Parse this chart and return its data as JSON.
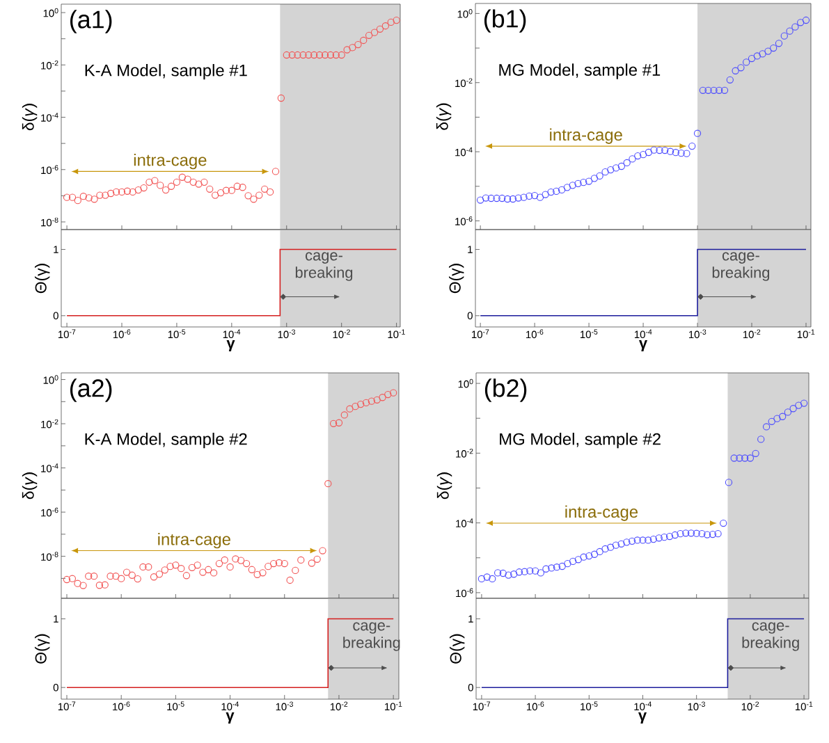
{
  "chart_data": [
    {
      "type": "scatter",
      "marker": "circle",
      "log": "xy",
      "color": "#f25555",
      "tick_labels": "y",
      "ylabel": "δ(*γ*)",
      "x": [
        1e-07,
        1.26e-07,
        1.58e-07,
        2e-07,
        2.51e-07,
        3.16e-07,
        3.98e-07,
        5.01e-07,
        6.31e-07,
        7.94e-07,
        1e-06,
        1.26e-06,
        1.58e-06,
        2e-06,
        2.51e-06,
        3.16e-06,
        3.98e-06,
        5.01e-06,
        6.31e-06,
        7.94e-06,
        1e-05,
        1.26e-05,
        1.58e-05,
        2e-05,
        2.51e-05,
        3.16e-05,
        3.98e-05,
        5.01e-05,
        6.31e-05,
        7.94e-05,
        0.0001,
        0.000126,
        0.000158,
        0.0002,
        0.000251,
        0.000316,
        0.000398,
        0.000501,
        0.000631,
        0.000794,
        0.001,
        0.00126,
        0.00158,
        0.002,
        0.00251,
        0.00316,
        0.00398,
        0.00501,
        0.00631,
        0.00794,
        0.01,
        0.0126,
        0.0158,
        0.02,
        0.0251,
        0.0316,
        0.0398,
        0.0501,
        0.0631,
        0.0794,
        0.1
      ],
      "values": [
        8.7e-08,
        8.7e-08,
        6.6e-08,
        9.5e-08,
        8.3e-08,
        7.4e-08,
        1.05e-07,
        1.05e-07,
        1.23e-07,
        1.4e-07,
        1.4e-07,
        1.5e-07,
        1.4e-07,
        1.66e-07,
        2e-07,
        3.3e-07,
        3.8e-07,
        2.5e-07,
        1.66e-07,
        2.3e-07,
        3.3e-07,
        5.1e-07,
        4.3e-07,
        3.3e-07,
        2.8e-07,
        3.3e-07,
        1.8e-07,
        1.05e-07,
        1.3e-07,
        1.6e-07,
        1.6e-07,
        2.3e-07,
        2.1e-07,
        1e-07,
        7.4e-08,
        1.05e-07,
        1.8e-07,
        1.4e-07,
        8.5e-07,
        0.00054,
        0.024,
        0.024,
        0.024,
        0.024,
        0.024,
        0.024,
        0.024,
        0.024,
        0.024,
        0.024,
        0.024,
        0.038,
        0.046,
        0.06,
        0.087,
        0.135,
        0.174,
        0.234,
        0.31,
        0.43,
        0.51
      ],
      "xlim": [
        7.9e-08,
        0.117
      ],
      "ylim": [
        5.1e-09,
        2.1
      ],
      "xticks": [
        {
          "value": 1e-07,
          "label": null
        },
        {
          "value": 1e-06,
          "label": null
        },
        {
          "value": 1e-05,
          "label": null
        },
        {
          "value": 0.0001,
          "label": null
        },
        {
          "value": 0.001,
          "label": null
        },
        {
          "value": 0.01,
          "label": null
        },
        {
          "value": 0.1,
          "label": null
        }
      ],
      "yticks": [
        {
          "value": 1,
          "label": "10$^{0}$"
        },
        {
          "value": 0.1,
          "label": null
        },
        {
          "value": 0.01,
          "label": "10$^{-2}$"
        },
        {
          "value": 0.001,
          "label": null
        },
        {
          "value": 0.0001,
          "label": "10$^{-4}$"
        },
        {
          "value": 1e-05,
          "label": null
        },
        {
          "value": 1e-06,
          "label": "10$^{-6}$"
        },
        {
          "value": 1e-07,
          "label": null
        },
        {
          "value": 1e-08,
          "label": "10$^{-8}$"
        }
      ],
      "bands": [
        {
          "axis": "x",
          "from": 0.00076,
          "to": 0.117,
          "color": "#d4d4d4"
        }
      ],
      "annotations": [
        "(a1)",
        "K-A Model, sample #1",
        "intra-cage"
      ]
    },
    {
      "type": "scatter",
      "marker": "circle",
      "log": "xy",
      "color": "#4d4dff",
      "tick_labels": "y",
      "ylabel": "δ(*γ*)",
      "x": [
        1e-07,
        1.26e-07,
        1.58e-07,
        2e-07,
        2.51e-07,
        3.16e-07,
        3.98e-07,
        5.01e-07,
        6.31e-07,
        7.94e-07,
        1e-06,
        1.26e-06,
        1.58e-06,
        2e-06,
        2.51e-06,
        3.16e-06,
        3.98e-06,
        5.01e-06,
        6.31e-06,
        7.94e-06,
        1e-05,
        1.26e-05,
        1.58e-05,
        2e-05,
        2.51e-05,
        3.16e-05,
        3.98e-05,
        5.01e-05,
        6.31e-05,
        7.94e-05,
        0.0001,
        0.000126,
        0.000158,
        0.0002,
        0.000251,
        0.000316,
        0.000398,
        0.000501,
        0.000631,
        0.000794,
        0.001,
        0.00126,
        0.00158,
        0.002,
        0.00251,
        0.00316,
        0.00398,
        0.00501,
        0.00631,
        0.00794,
        0.01,
        0.0126,
        0.0158,
        0.02,
        0.0251,
        0.0316,
        0.0398,
        0.0501,
        0.0631,
        0.0794,
        0.1
      ],
      "values": [
        4e-06,
        4.6e-06,
        4.5e-06,
        4.5e-06,
        4.5e-06,
        4.3e-06,
        4.3e-06,
        4.6e-06,
        4.8e-06,
        5.2e-06,
        5.4e-06,
        4.8e-06,
        5.8e-06,
        6.8e-06,
        7.2e-06,
        7.9e-06,
        9.3e-06,
        1.07e-05,
        1.2e-05,
        1.3e-05,
        1.4e-05,
        1.7e-05,
        2e-05,
        2.6e-05,
        3e-05,
        3.4e-05,
        3.8e-05,
        4.8e-05,
        6.2e-05,
        7.6e-05,
        8.3e-05,
        9.6e-05,
        0.000112,
        0.00011,
        0.00011,
        0.000102,
        9.5e-05,
        9.1e-05,
        8.9e-05,
        0.000145,
        0.00034,
        0.006,
        0.006,
        0.006,
        0.006,
        0.006,
        0.012,
        0.022,
        0.027,
        0.039,
        0.05,
        0.059,
        0.068,
        0.081,
        0.1,
        0.137,
        0.224,
        0.31,
        0.41,
        0.55,
        0.64
      ],
      "xlim": [
        8.1e-08,
        0.123
      ],
      "ylim": [
        5.6e-07,
        1.95
      ],
      "xticks": [
        {
          "value": 1e-07,
          "label": null
        },
        {
          "value": 1e-06,
          "label": null
        },
        {
          "value": 1e-05,
          "label": null
        },
        {
          "value": 0.0001,
          "label": null
        },
        {
          "value": 0.001,
          "label": null
        },
        {
          "value": 0.01,
          "label": null
        },
        {
          "value": 0.1,
          "label": null
        }
      ],
      "yticks": [
        {
          "value": 1,
          "label": "10$^{0}$"
        },
        {
          "value": 0.1,
          "label": null
        },
        {
          "value": 0.01,
          "label": "10$^{-2}$"
        },
        {
          "value": 0.001,
          "label": null
        },
        {
          "value": 0.0001,
          "label": "10$^{-4}$"
        },
        {
          "value": 1e-05,
          "label": null
        },
        {
          "value": 1e-06,
          "label": "10$^{-6}$"
        }
      ],
      "bands": [
        {
          "axis": "x",
          "from": 0.001,
          "to": 0.123,
          "color": "#d4d4d4"
        }
      ],
      "annotations": [
        "(b1)",
        "MG Model, sample #1",
        "intra-cage"
      ]
    },
    {
      "type": "step",
      "log": "x",
      "color": "#d41e1e",
      "ylabel": "Θ(γ)",
      "xlabel": "γ",
      "x": [
        1e-07,
        0.00076,
        0.1
      ],
      "values": [
        0,
        1,
        1
      ],
      "xlim": [
        7.9e-08,
        0.117
      ],
      "ylim": [
        -0.17,
        1.3
      ],
      "xticks": [
        {
          "value": 1e-07,
          "label": "10$^{-7}$"
        },
        {
          "value": 1e-06,
          "label": "10$^{-6}$"
        },
        {
          "value": 1e-05,
          "label": "10$^{-5}$"
        },
        {
          "value": 0.0001,
          "label": "10$^{-4}$"
        },
        {
          "value": 0.001,
          "label": "10$^{-3}$"
        },
        {
          "value": 0.01,
          "label": "10$^{-2}$"
        },
        {
          "value": 0.1,
          "label": "10$^{-1}$"
        }
      ],
      "yticks": [
        0,
        1
      ],
      "bands": [
        {
          "axis": "x",
          "from": 0.00076,
          "to": 0.117,
          "color": "#d4d4d4"
        }
      ],
      "annotations": [
        "cage-breaking"
      ]
    },
    {
      "type": "step",
      "log": "x",
      "color": "#1c1c9c",
      "ylabel": "Θ(γ)",
      "xlabel": "γ",
      "x": [
        1e-07,
        0.001,
        0.1
      ],
      "values": [
        0,
        1,
        1
      ],
      "xlim": [
        8.1e-08,
        0.123
      ],
      "ylim": [
        -0.17,
        1.3
      ],
      "xticks": [
        {
          "value": 1e-07,
          "label": "10$^{-7}$"
        },
        {
          "value": 1e-06,
          "label": "10$^{-6}$"
        },
        {
          "value": 1e-05,
          "label": "10$^{-5}$"
        },
        {
          "value": 0.0001,
          "label": "10$^{-4}$"
        },
        {
          "value": 0.001,
          "label": "10$^{-3}$"
        },
        {
          "value": 0.01,
          "label": "10$^{-2}$"
        },
        {
          "value": 0.1,
          "label": "10$^{-1}$"
        }
      ],
      "yticks": [
        0,
        1
      ],
      "bands": [
        {
          "axis": "x",
          "from": 0.001,
          "to": 0.123,
          "color": "#d4d4d4"
        }
      ],
      "annotations": [
        "cage-breaking"
      ]
    },
    {
      "type": "scatter",
      "marker": "circle",
      "log": "xy",
      "color": "#f25555",
      "tick_labels": "y",
      "ylabel": "δ(*γ*)",
      "x": [
        1e-07,
        1.26e-07,
        1.58e-07,
        2e-07,
        2.51e-07,
        3.16e-07,
        3.98e-07,
        5.01e-07,
        6.31e-07,
        7.94e-07,
        1e-06,
        1.26e-06,
        1.58e-06,
        2e-06,
        2.51e-06,
        3.16e-06,
        3.98e-06,
        5.01e-06,
        6.31e-06,
        7.94e-06,
        1e-05,
        1.26e-05,
        1.58e-05,
        2e-05,
        2.51e-05,
        3.16e-05,
        3.98e-05,
        5.01e-05,
        6.31e-05,
        7.94e-05,
        0.0001,
        0.000126,
        0.000158,
        0.0002,
        0.000251,
        0.000316,
        0.000398,
        0.000501,
        0.000631,
        0.000794,
        0.001,
        0.00126,
        0.00158,
        0.002,
        0.00251,
        0.00316,
        0.00398,
        0.00501,
        0.00631,
        0.00794,
        0.01,
        0.0126,
        0.0158,
        0.02,
        0.0251,
        0.0316,
        0.0398,
        0.0501,
        0.0631,
        0.0794,
        0.1
      ],
      "values": [
        8.9e-10,
        9.8e-10,
        5.9e-10,
        4.8e-10,
        1.26e-09,
        1.26e-09,
        4.9e-10,
        5.1e-10,
        1.26e-09,
        1.26e-09,
        9.8e-10,
        1.9e-09,
        1.4e-09,
        9.5e-10,
        3.3e-09,
        3.3e-09,
        1.17e-09,
        1.55e-09,
        2.4e-09,
        3.5e-09,
        4e-09,
        2.8e-09,
        1.35e-09,
        3.1e-09,
        4e-09,
        1.9e-09,
        2.5e-09,
        1.78e-09,
        4.7e-09,
        6.8e-09,
        3.3e-09,
        7.6e-09,
        6.5e-09,
        4.7e-09,
        2.5e-09,
        1.5e-09,
        1.8e-09,
        3.5e-09,
        4.7e-09,
        5.1e-09,
        4.7e-09,
        8.3e-10,
        2.3e-09,
        6.8e-09,
        null,
        4.9e-09,
        7.4e-09,
        1.8e-08,
        1.94e-05,
        0.0102,
        0.011,
        0.025,
        0.047,
        0.061,
        0.076,
        0.089,
        0.105,
        0.12,
        0.155,
        0.21,
        0.25
      ],
      "xlim": [
        7.9e-08,
        0.126
      ],
      "ylim": [
        1.26e-10,
        2.0
      ],
      "xticks": [
        {
          "value": 1e-07,
          "label": null
        },
        {
          "value": 1e-06,
          "label": null
        },
        {
          "value": 1e-05,
          "label": null
        },
        {
          "value": 0.0001,
          "label": null
        },
        {
          "value": 0.001,
          "label": null
        },
        {
          "value": 0.01,
          "label": null
        },
        {
          "value": 0.1,
          "label": null
        }
      ],
      "yticks": [
        {
          "value": 1,
          "label": "10$^{0}$"
        },
        {
          "value": 0.1,
          "label": null
        },
        {
          "value": 0.01,
          "label": "10$^{-2}$"
        },
        {
          "value": 0.001,
          "label": null
        },
        {
          "value": 0.0001,
          "label": "10$^{-4}$"
        },
        {
          "value": 1e-05,
          "label": null
        },
        {
          "value": 1e-06,
          "label": "10$^{-6}$"
        },
        {
          "value": 1e-07,
          "label": null
        },
        {
          "value": 1e-08,
          "label": "10$^{-8}$"
        },
        {
          "value": 1e-09,
          "label": null
        }
      ],
      "bands": [
        {
          "axis": "x",
          "from": 0.0063,
          "to": 0.126,
          "color": "#d4d4d4"
        }
      ],
      "annotations": [
        "(a2)",
        "K-A Model, sample #2",
        "intra-cage"
      ]
    },
    {
      "type": "scatter",
      "marker": "circle",
      "log": "xy",
      "color": "#4d4dff",
      "tick_labels": "y",
      "ylabel": "δ(*γ*)",
      "x": [
        1e-07,
        1.26e-07,
        1.58e-07,
        2e-07,
        2.51e-07,
        3.16e-07,
        3.98e-07,
        5.01e-07,
        6.31e-07,
        7.94e-07,
        1e-06,
        1.26e-06,
        1.58e-06,
        2e-06,
        2.51e-06,
        3.16e-06,
        3.98e-06,
        5.01e-06,
        6.31e-06,
        7.94e-06,
        1e-05,
        1.26e-05,
        1.58e-05,
        2e-05,
        2.51e-05,
        3.16e-05,
        3.98e-05,
        5.01e-05,
        6.31e-05,
        7.94e-05,
        0.0001,
        0.000126,
        0.000158,
        0.0002,
        0.000251,
        0.000316,
        0.000398,
        0.000501,
        0.000631,
        0.000794,
        0.001,
        0.00126,
        0.00158,
        0.002,
        0.00251,
        0.00316,
        0.00398,
        0.00501,
        0.00631,
        0.00794,
        0.01,
        0.0126,
        0.0158,
        0.02,
        0.0251,
        0.0316,
        0.0398,
        0.0501,
        0.0631,
        0.0794,
        0.1
      ],
      "values": [
        2.5e-06,
        2.8e-06,
        2.5e-06,
        3.7e-06,
        3.6e-06,
        3.2e-06,
        3.4e-06,
        3.9e-06,
        4e-06,
        4.2e-06,
        4.2e-06,
        3.7e-06,
        4.8e-06,
        5.1e-06,
        5.4e-06,
        5.7e-06,
        6.8e-06,
        7.9e-06,
        8.9e-06,
        1.05e-05,
        1.13e-05,
        1.26e-05,
        1.5e-05,
        1.8e-05,
        2e-05,
        2.3e-05,
        2.5e-05,
        2.8e-05,
        3e-05,
        3.2e-05,
        3.2e-05,
        3.2e-05,
        3.4e-05,
        3.7e-05,
        3.9e-05,
        4.1e-05,
        4.5e-05,
        4.9e-05,
        5.1e-05,
        5.1e-05,
        5e-05,
        4.9e-05,
        4.6e-05,
        4.7e-05,
        4.9e-05,
        9.8e-05,
        0.00145,
        0.0072,
        0.0072,
        0.0072,
        0.0072,
        0.0098,
        0.025,
        0.057,
        0.081,
        0.098,
        0.112,
        0.15,
        0.19,
        0.235,
        0.27
      ],
      "xlim": [
        7.9e-08,
        0.123
      ],
      "ylim": [
        6.9e-07,
        2.0
      ],
      "xticks": [
        {
          "value": 1e-07,
          "label": null
        },
        {
          "value": 1e-06,
          "label": null
        },
        {
          "value": 1e-05,
          "label": null
        },
        {
          "value": 0.0001,
          "label": null
        },
        {
          "value": 0.001,
          "label": null
        },
        {
          "value": 0.01,
          "label": null
        },
        {
          "value": 0.1,
          "label": null
        }
      ],
      "yticks": [
        {
          "value": 1,
          "label": "10$^{0}$"
        },
        {
          "value": 0.1,
          "label": null
        },
        {
          "value": 0.01,
          "label": "10$^{-2}$"
        },
        {
          "value": 0.001,
          "label": null
        },
        {
          "value": 0.0001,
          "label": "10$^{-4}$"
        },
        {
          "value": 1e-05,
          "label": null
        },
        {
          "value": 1e-06,
          "label": "10$^{-6}$"
        }
      ],
      "bands": [
        {
          "axis": "x",
          "from": 0.0038,
          "to": 0.123,
          "color": "#d4d4d4"
        }
      ],
      "annotations": [
        "(b2)",
        "MG Model, sample #2",
        "intra-cage"
      ]
    },
    {
      "type": "step",
      "log": "x",
      "color": "#d41e1e",
      "ylabel": "Θ(γ)",
      "xlabel": "γ",
      "x": [
        1e-07,
        0.0063,
        0.1
      ],
      "values": [
        0,
        1,
        1
      ],
      "xlim": [
        7.9e-08,
        0.126
      ],
      "ylim": [
        -0.17,
        1.3
      ],
      "xticks": [
        {
          "value": 1e-07,
          "label": "10$^{-7}$"
        },
        {
          "value": 1e-06,
          "label": "10$^{-6}$"
        },
        {
          "value": 1e-05,
          "label": "10$^{-5}$"
        },
        {
          "value": 0.0001,
          "label": "10$^{-4}$"
        },
        {
          "value": 0.001,
          "label": "10$^{-3}$"
        },
        {
          "value": 0.01,
          "label": "10$^{-2}$"
        },
        {
          "value": 0.1,
          "label": "10$^{-1}$"
        }
      ],
      "yticks": [
        0,
        1
      ],
      "bands": [
        {
          "axis": "x",
          "from": 0.0063,
          "to": 0.126,
          "color": "#d4d4d4"
        }
      ],
      "annotations": [
        "cage-breaking"
      ]
    },
    {
      "type": "step",
      "log": "x",
      "color": "#1c1c9c",
      "ylabel": "Θ(γ)",
      "xlabel": "γ",
      "x": [
        1e-07,
        0.0038,
        0.1
      ],
      "values": [
        0,
        1,
        1
      ],
      "xlim": [
        7.9e-08,
        0.123
      ],
      "ylim": [
        -0.17,
        1.3
      ],
      "xticks": [
        {
          "value": 1e-07,
          "label": "10$^{-7}$"
        },
        {
          "value": 1e-06,
          "label": "10$^{-6}$"
        },
        {
          "value": 1e-05,
          "label": "10$^{-5}$"
        },
        {
          "value": 0.0001,
          "label": "10$^{-4}$"
        },
        {
          "value": 0.001,
          "label": "10$^{-3}$"
        },
        {
          "value": 0.01,
          "label": "10$^{-2}$"
        },
        {
          "value": 0.1,
          "label": "10$^{-1}$"
        }
      ],
      "yticks": [
        0,
        1
      ],
      "bands": [
        {
          "axis": "x",
          "from": 0.0038,
          "to": 0.123,
          "color": "#d4d4d4"
        }
      ],
      "annotations": [
        "cage-breaking"
      ]
    }
  ]
}
